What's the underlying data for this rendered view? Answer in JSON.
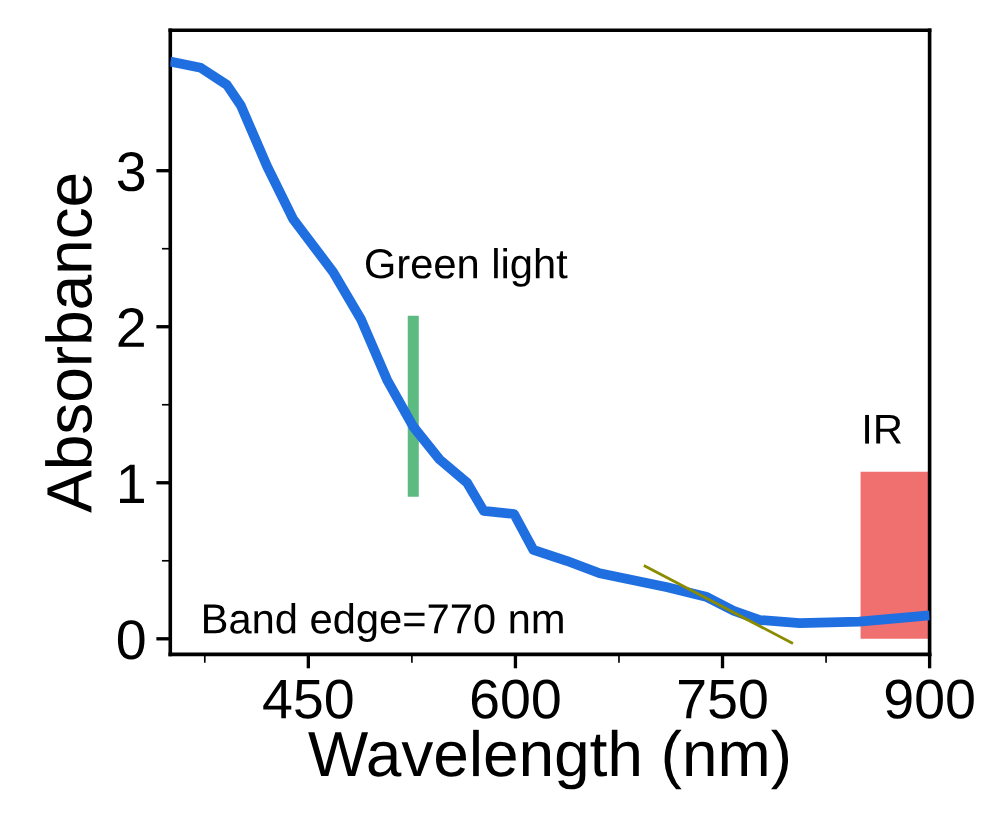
{
  "chart_data": {
    "type": "line",
    "xlabel": "Wavelength (nm)",
    "ylabel": "Absorbance",
    "xlim": [
      350,
      900
    ],
    "ylim": [
      -0.1,
      3.9
    ],
    "xticks": [
      450,
      600,
      750,
      900
    ],
    "yticks": [
      0,
      1,
      2,
      3
    ],
    "series": [
      {
        "color": "#1f6fe0",
        "x": [
          350,
          372,
          391,
          401,
          420,
          439,
          468,
          488,
          507,
          526,
          545,
          565,
          577,
          599,
          613,
          637,
          661,
          710,
          738,
          758,
          777,
          806,
          849,
          900
        ],
        "values": [
          3.7,
          3.66,
          3.55,
          3.42,
          3.03,
          2.69,
          2.35,
          2.05,
          1.66,
          1.36,
          1.15,
          1.0,
          0.82,
          0.8,
          0.57,
          0.5,
          0.42,
          0.33,
          0.27,
          0.18,
          0.12,
          0.1,
          0.11,
          0.15
        ]
      },
      {
        "color": "#8b8b00",
        "x": [
          693,
          801
        ],
        "values": [
          0.47,
          -0.03
        ]
      },
      {
        "type": "bar",
        "color": "#5dbb82",
        "x": [
          526
        ],
        "base": [
          0.91
        ],
        "values": [
          1.16
        ]
      },
      {
        "type": "area",
        "color": "#f07070",
        "x": [
          850,
          900
        ],
        "values": [
          1.07,
          1.07
        ]
      }
    ],
    "annotations": [
      "Green light",
      "IR",
      "Band edge=770 nm"
    ],
    "grid": false,
    "legend": false
  }
}
